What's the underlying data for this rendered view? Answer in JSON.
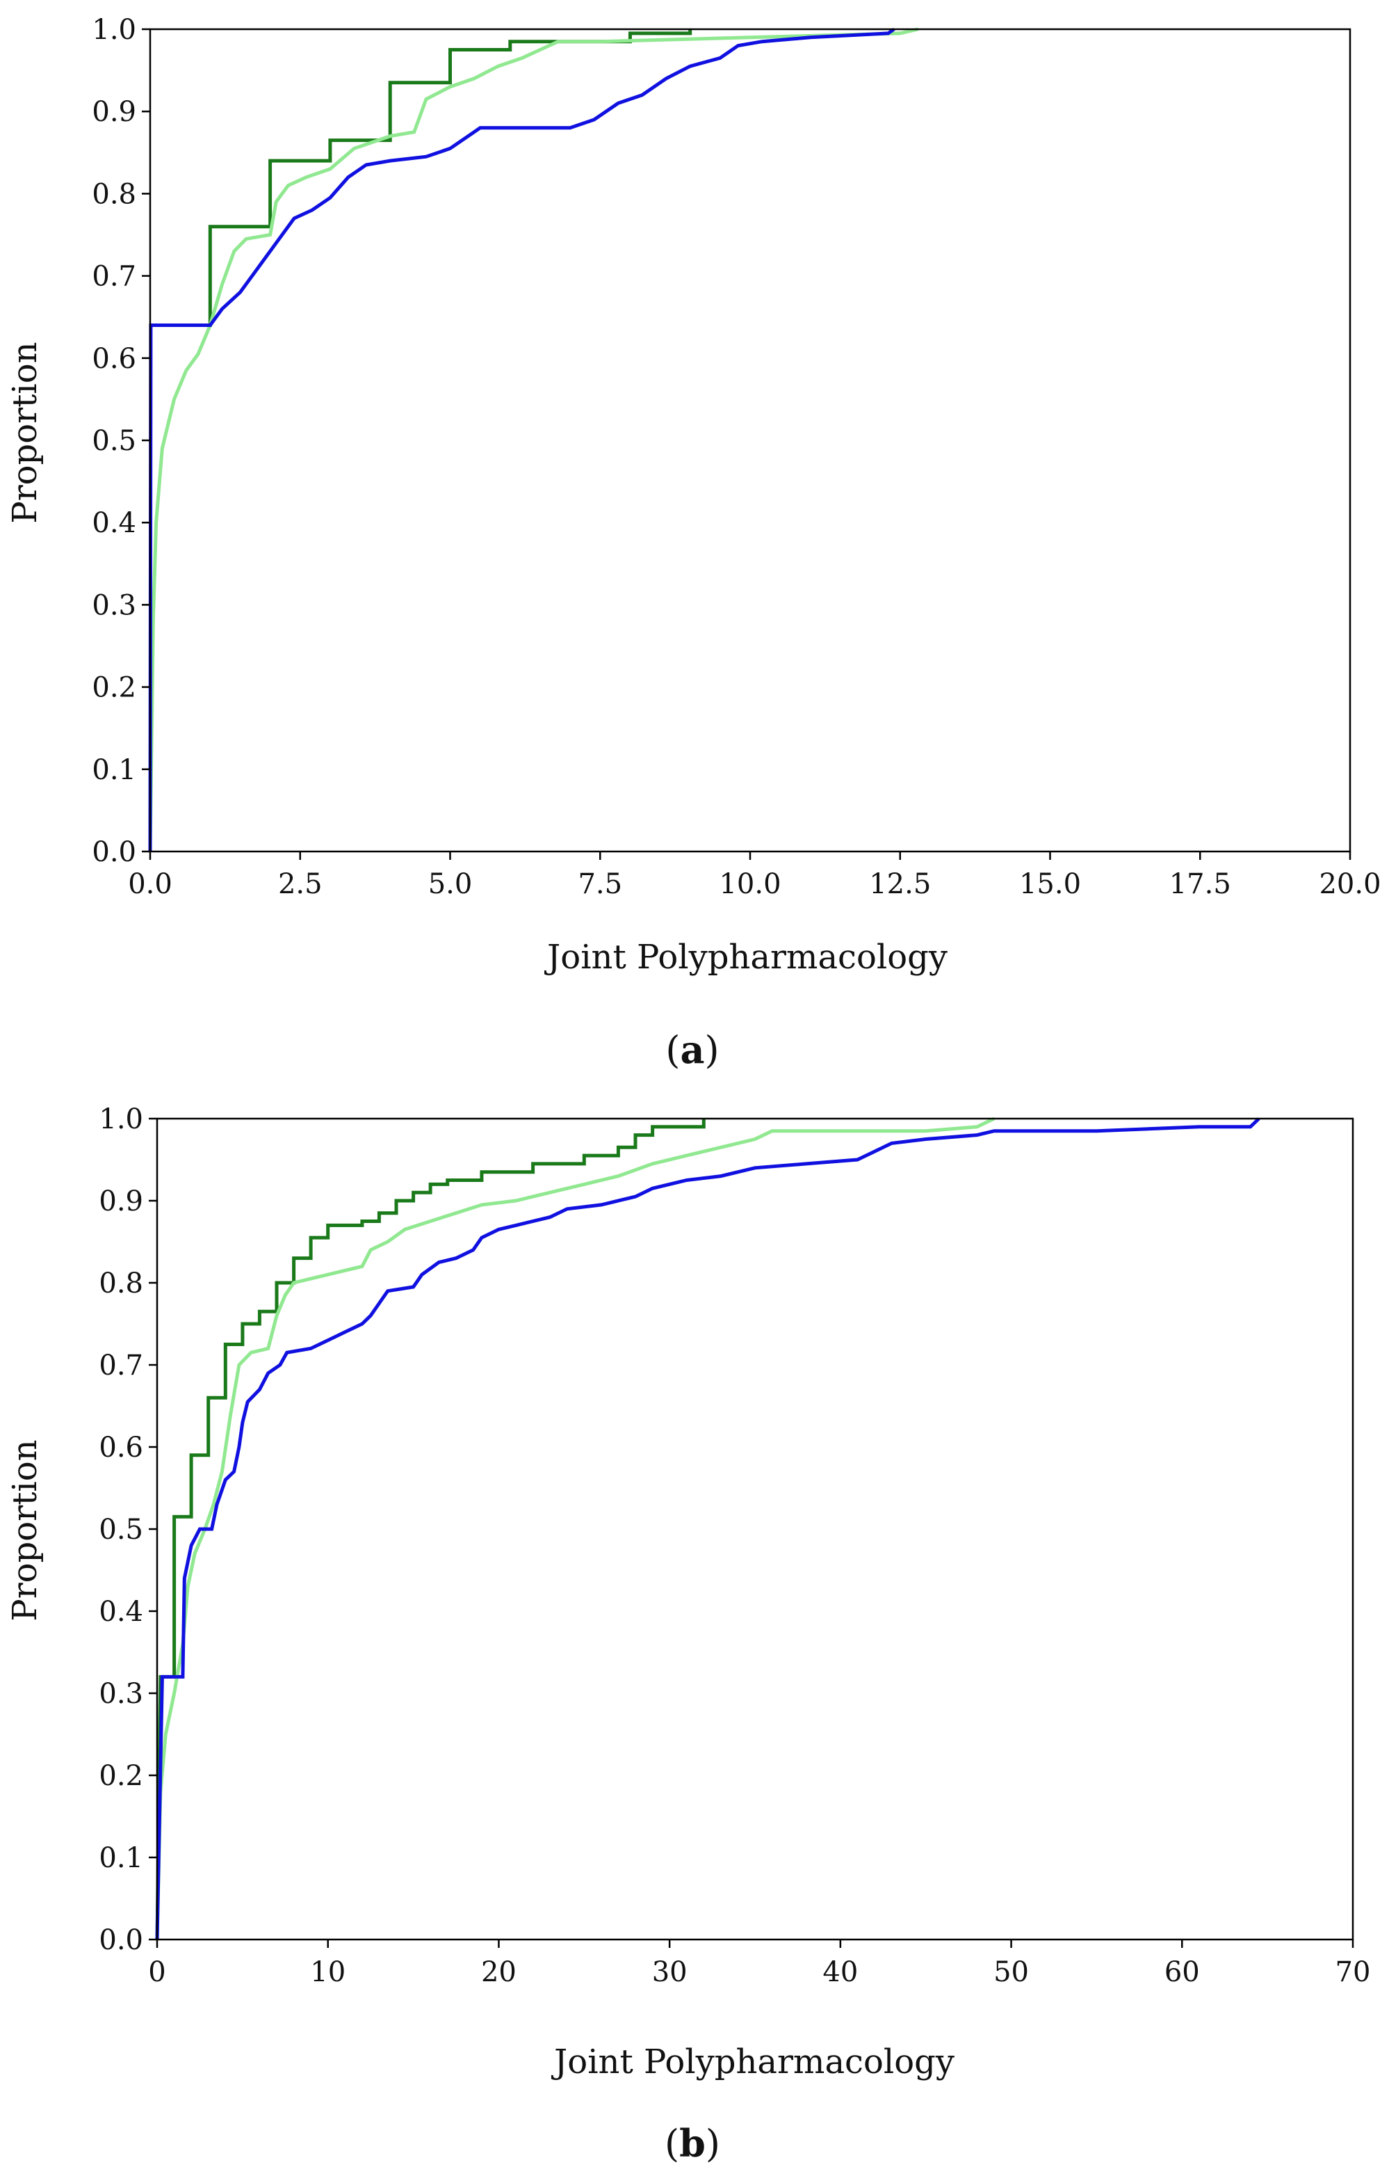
{
  "chart_data": [
    {
      "type": "line",
      "panel_label": "a",
      "xlabel": "Joint Polypharmacology",
      "ylabel": "Proportion",
      "xlim": [
        0,
        20
      ],
      "ylim": [
        0,
        1
      ],
      "xticks": [
        "0.0",
        "2.5",
        "5.0",
        "7.5",
        "10.0",
        "12.5",
        "15.0",
        "17.5",
        "20.0"
      ],
      "yticks": [
        "0.0",
        "0.1",
        "0.2",
        "0.3",
        "0.4",
        "0.5",
        "0.6",
        "0.7",
        "0.8",
        "0.9",
        "1.0"
      ],
      "grid": false,
      "legend": "none",
      "series": [
        {
          "color": "#1a7a1a",
          "points": [
            [
              0,
              0.64
            ],
            [
              1,
              0.64
            ],
            [
              1,
              0.76
            ],
            [
              2,
              0.76
            ],
            [
              2,
              0.84
            ],
            [
              3,
              0.84
            ],
            [
              3,
              0.865
            ],
            [
              4,
              0.865
            ],
            [
              4,
              0.935
            ],
            [
              5,
              0.935
            ],
            [
              5,
              0.975
            ],
            [
              6,
              0.975
            ],
            [
              6,
              0.985
            ],
            [
              8,
              0.985
            ],
            [
              8,
              0.995
            ],
            [
              9,
              0.995
            ],
            [
              9,
              1.0
            ]
          ]
        },
        {
          "color": "#90e890",
          "points": [
            [
              0,
              0.0
            ],
            [
              0.05,
              0.28
            ],
            [
              0.1,
              0.4
            ],
            [
              0.2,
              0.49
            ],
            [
              0.3,
              0.52
            ],
            [
              0.4,
              0.55
            ],
            [
              0.6,
              0.585
            ],
            [
              0.8,
              0.605
            ],
            [
              1.0,
              0.64
            ],
            [
              1.2,
              0.69
            ],
            [
              1.4,
              0.73
            ],
            [
              1.6,
              0.745
            ],
            [
              2.0,
              0.75
            ],
            [
              2.1,
              0.79
            ],
            [
              2.3,
              0.81
            ],
            [
              2.6,
              0.82
            ],
            [
              3.0,
              0.83
            ],
            [
              3.4,
              0.855
            ],
            [
              4.0,
              0.87
            ],
            [
              4.4,
              0.875
            ],
            [
              4.6,
              0.915
            ],
            [
              5.0,
              0.93
            ],
            [
              5.4,
              0.94
            ],
            [
              5.8,
              0.955
            ],
            [
              6.2,
              0.965
            ],
            [
              6.5,
              0.975
            ],
            [
              6.8,
              0.985
            ],
            [
              7.5,
              0.985
            ],
            [
              10.0,
              0.99
            ],
            [
              12.5,
              0.995
            ],
            [
              12.8,
              1.0
            ]
          ]
        },
        {
          "color": "#1010e0",
          "points": [
            [
              0,
              0.0
            ],
            [
              0.01,
              0.64
            ],
            [
              1.0,
              0.64
            ],
            [
              1.2,
              0.66
            ],
            [
              1.5,
              0.68
            ],
            [
              1.8,
              0.71
            ],
            [
              2.1,
              0.74
            ],
            [
              2.4,
              0.77
            ],
            [
              2.7,
              0.78
            ],
            [
              3.0,
              0.795
            ],
            [
              3.3,
              0.82
            ],
            [
              3.6,
              0.835
            ],
            [
              4.0,
              0.84
            ],
            [
              4.6,
              0.845
            ],
            [
              5.0,
              0.855
            ],
            [
              5.3,
              0.87
            ],
            [
              5.5,
              0.88
            ],
            [
              7.0,
              0.88
            ],
            [
              7.4,
              0.89
            ],
            [
              7.8,
              0.91
            ],
            [
              8.2,
              0.92
            ],
            [
              8.6,
              0.94
            ],
            [
              9.0,
              0.955
            ],
            [
              9.5,
              0.965
            ],
            [
              9.8,
              0.98
            ],
            [
              10.2,
              0.985
            ],
            [
              11.0,
              0.99
            ],
            [
              12.3,
              0.995
            ],
            [
              12.4,
              1.0
            ]
          ]
        }
      ]
    },
    {
      "type": "line",
      "panel_label": "b",
      "xlabel": "Joint Polypharmacology",
      "ylabel": "Proportion",
      "xlim": [
        0,
        70
      ],
      "ylim": [
        0,
        1
      ],
      "xticks": [
        "0",
        "10",
        "20",
        "30",
        "40",
        "50",
        "60",
        "70"
      ],
      "yticks": [
        "0.0",
        "0.1",
        "0.2",
        "0.3",
        "0.4",
        "0.5",
        "0.6",
        "0.7",
        "0.8",
        "0.9",
        "1.0"
      ],
      "grid": false,
      "legend": "none",
      "series": [
        {
          "color": "#1a7a1a",
          "points": [
            [
              0,
              0.0
            ],
            [
              0.2,
              0.32
            ],
            [
              1,
              0.32
            ],
            [
              1,
              0.515
            ],
            [
              2,
              0.515
            ],
            [
              2,
              0.59
            ],
            [
              3,
              0.59
            ],
            [
              3,
              0.66
            ],
            [
              4,
              0.66
            ],
            [
              4,
              0.725
            ],
            [
              5,
              0.725
            ],
            [
              5,
              0.75
            ],
            [
              6,
              0.75
            ],
            [
              6,
              0.765
            ],
            [
              7,
              0.765
            ],
            [
              7,
              0.8
            ],
            [
              8,
              0.8
            ],
            [
              8,
              0.83
            ],
            [
              9,
              0.83
            ],
            [
              9,
              0.855
            ],
            [
              10,
              0.855
            ],
            [
              10,
              0.87
            ],
            [
              12,
              0.87
            ],
            [
              12,
              0.875
            ],
            [
              13,
              0.875
            ],
            [
              13,
              0.885
            ],
            [
              14,
              0.885
            ],
            [
              14,
              0.9
            ],
            [
              15,
              0.9
            ],
            [
              15,
              0.91
            ],
            [
              16,
              0.91
            ],
            [
              16,
              0.92
            ],
            [
              17,
              0.92
            ],
            [
              17,
              0.925
            ],
            [
              19,
              0.925
            ],
            [
              19,
              0.935
            ],
            [
              22,
              0.935
            ],
            [
              22,
              0.945
            ],
            [
              25,
              0.945
            ],
            [
              25,
              0.955
            ],
            [
              27,
              0.955
            ],
            [
              27,
              0.965
            ],
            [
              28,
              0.965
            ],
            [
              28,
              0.98
            ],
            [
              29,
              0.98
            ],
            [
              29,
              0.99
            ],
            [
              32,
              0.99
            ],
            [
              32,
              1.0
            ]
          ]
        },
        {
          "color": "#90e890",
          "points": [
            [
              0,
              0.0
            ],
            [
              0.2,
              0.18
            ],
            [
              0.5,
              0.25
            ],
            [
              1.0,
              0.3
            ],
            [
              1.5,
              0.36
            ],
            [
              1.8,
              0.43
            ],
            [
              2.2,
              0.47
            ],
            [
              2.8,
              0.5
            ],
            [
              3.3,
              0.53
            ],
            [
              3.8,
              0.57
            ],
            [
              4.3,
              0.64
            ],
            [
              4.8,
              0.7
            ],
            [
              5.5,
              0.715
            ],
            [
              6.5,
              0.72
            ],
            [
              7.0,
              0.76
            ],
            [
              7.5,
              0.785
            ],
            [
              8.0,
              0.8
            ],
            [
              10,
              0.81
            ],
            [
              11,
              0.815
            ],
            [
              12,
              0.82
            ],
            [
              12.5,
              0.84
            ],
            [
              13.5,
              0.85
            ],
            [
              14.5,
              0.865
            ],
            [
              16,
              0.875
            ],
            [
              17.5,
              0.885
            ],
            [
              19,
              0.895
            ],
            [
              21,
              0.9
            ],
            [
              23,
              0.91
            ],
            [
              25,
              0.92
            ],
            [
              27,
              0.93
            ],
            [
              29,
              0.945
            ],
            [
              31,
              0.955
            ],
            [
              33,
              0.965
            ],
            [
              35,
              0.975
            ],
            [
              36,
              0.985
            ],
            [
              45,
              0.985
            ],
            [
              48,
              0.99
            ],
            [
              49,
              1.0
            ]
          ]
        },
        {
          "color": "#1010e0",
          "points": [
            [
              0,
              0.0
            ],
            [
              0.3,
              0.32
            ],
            [
              1.5,
              0.32
            ],
            [
              1.6,
              0.44
            ],
            [
              2.0,
              0.48
            ],
            [
              2.5,
              0.5
            ],
            [
              3.2,
              0.5
            ],
            [
              3.5,
              0.53
            ],
            [
              4.0,
              0.56
            ],
            [
              4.5,
              0.57
            ],
            [
              4.8,
              0.6
            ],
            [
              5.0,
              0.63
            ],
            [
              5.3,
              0.655
            ],
            [
              6.0,
              0.67
            ],
            [
              6.5,
              0.69
            ],
            [
              7.2,
              0.7
            ],
            [
              7.6,
              0.715
            ],
            [
              9,
              0.72
            ],
            [
              10,
              0.73
            ],
            [
              11,
              0.74
            ],
            [
              12,
              0.75
            ],
            [
              12.5,
              0.76
            ],
            [
              13,
              0.775
            ],
            [
              13.5,
              0.79
            ],
            [
              15,
              0.795
            ],
            [
              15.5,
              0.81
            ],
            [
              16.5,
              0.825
            ],
            [
              17.5,
              0.83
            ],
            [
              18.5,
              0.84
            ],
            [
              19,
              0.855
            ],
            [
              20,
              0.865
            ],
            [
              21,
              0.87
            ],
            [
              23,
              0.88
            ],
            [
              24,
              0.89
            ],
            [
              26,
              0.895
            ],
            [
              28,
              0.905
            ],
            [
              29,
              0.915
            ],
            [
              31,
              0.925
            ],
            [
              33,
              0.93
            ],
            [
              35,
              0.94
            ],
            [
              38,
              0.945
            ],
            [
              41,
              0.95
            ],
            [
              42,
              0.96
            ],
            [
              43,
              0.97
            ],
            [
              45,
              0.975
            ],
            [
              48,
              0.98
            ],
            [
              49,
              0.985
            ],
            [
              55,
              0.985
            ],
            [
              61,
              0.99
            ],
            [
              64,
              0.99
            ],
            [
              64.5,
              1.0
            ]
          ]
        }
      ]
    }
  ]
}
